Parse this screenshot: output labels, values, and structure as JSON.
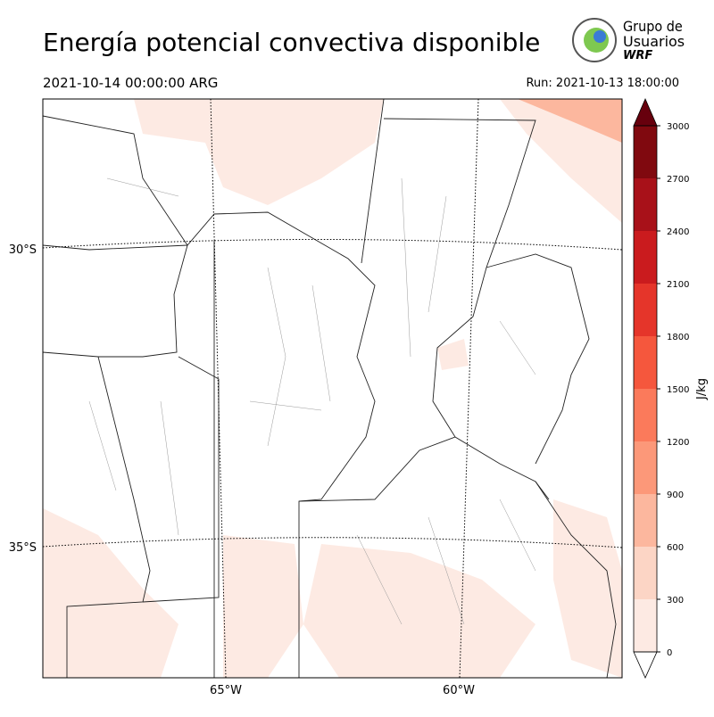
{
  "header": {
    "title": "Energía potencial convectiva disponible",
    "valid_time": "2021-10-14 00:00:00 ARG",
    "run": "Run: 2021-10-13 18:00:00"
  },
  "logo": {
    "lines": [
      "Grupo de",
      "Usuarios",
      "WRF"
    ]
  },
  "map": {
    "lat_labels": [
      "30°S",
      "35°S"
    ],
    "lon_labels": [
      "65°W",
      "60°W"
    ]
  },
  "colorbar": {
    "label": "J/kg",
    "levels": [
      0,
      300,
      600,
      900,
      1200,
      1500,
      1800,
      2100,
      2400,
      2700,
      3000
    ],
    "colors": [
      "#fdeae3",
      "#fcd5c5",
      "#fcb79e",
      "#fc9879",
      "#fb7a5b",
      "#f5573d",
      "#e5352a",
      "#ca1b1e",
      "#a81119",
      "#80090f"
    ],
    "over_color": "#67000d",
    "under_color": "#ffffff"
  }
}
